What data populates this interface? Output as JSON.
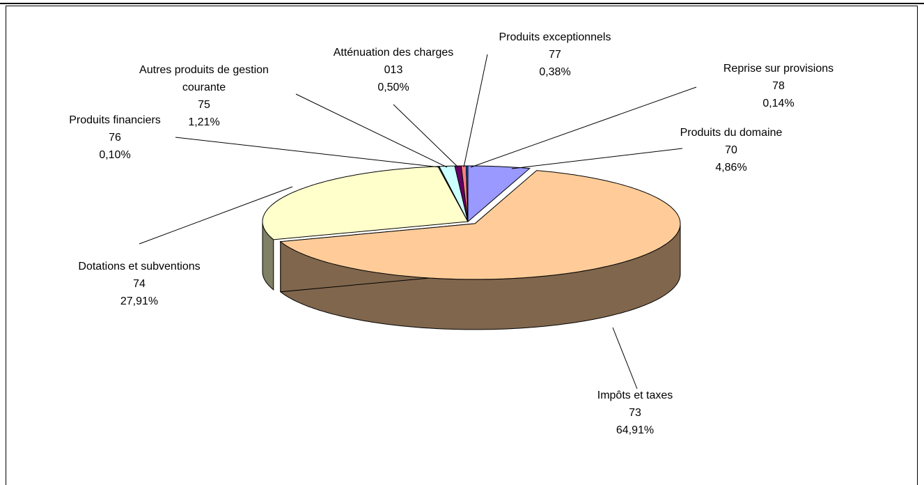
{
  "chart_data": {
    "type": "pie3d",
    "categories": [
      "Produits du domaine",
      "Impôts et taxes",
      "Dotations et subventions",
      "Produits financiers",
      "Autres produits de gestion courante",
      "Atténuation des charges",
      "Produits exceptionnels",
      "Reprise sur provisions"
    ],
    "codes": [
      "70",
      "73",
      "74",
      "76",
      "75",
      "013",
      "77",
      "78"
    ],
    "values": [
      4.86,
      64.91,
      27.91,
      0.1,
      1.21,
      0.5,
      0.38,
      0.14
    ],
    "value_labels": [
      "4,86%",
      "64,91%",
      "27,91%",
      "0,10%",
      "1,21%",
      "0,50%",
      "0,38%",
      "0,14%"
    ],
    "colors": [
      "#9999ff",
      "#ffcc99",
      "#ffffcc",
      "#336666",
      "#ccffff",
      "#660066",
      "#ff8080",
      "#0066cc"
    ]
  }
}
